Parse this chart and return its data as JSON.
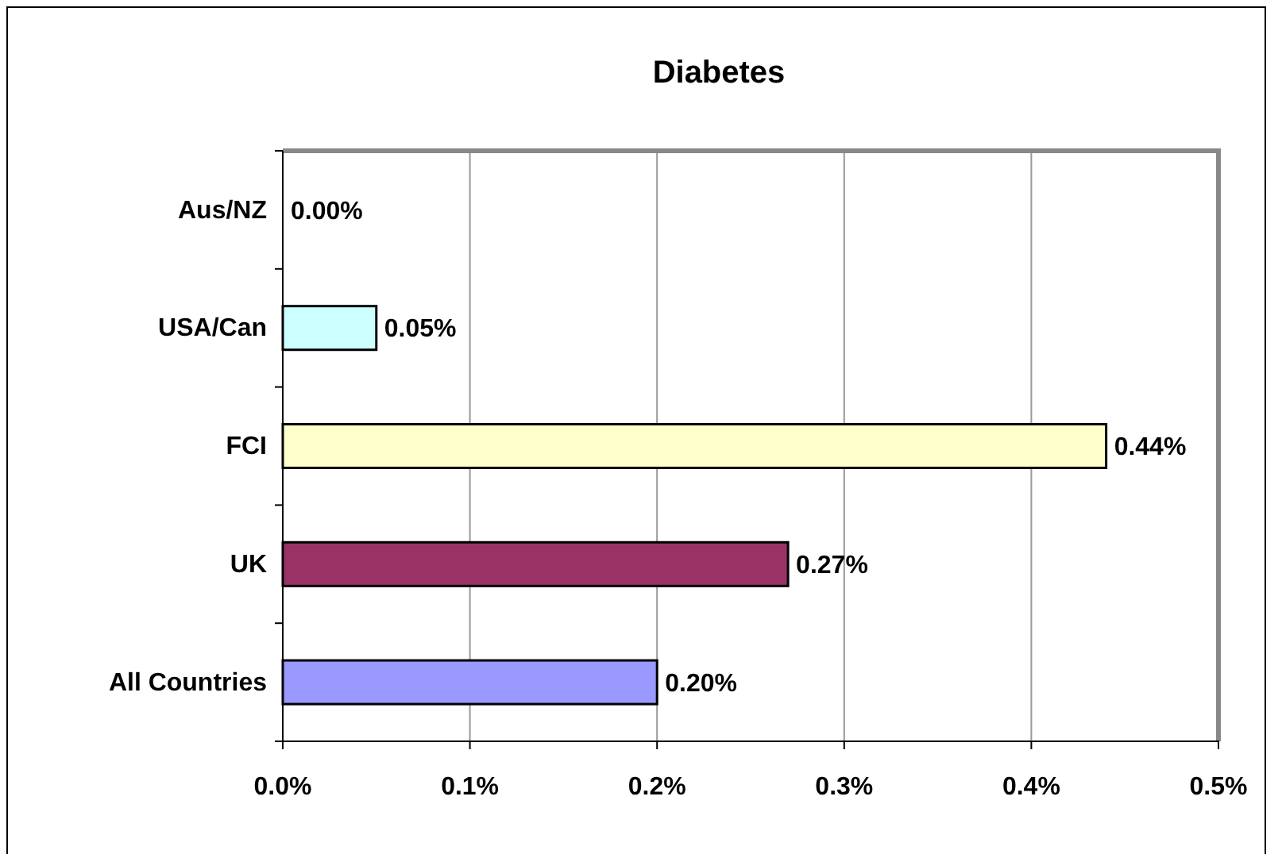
{
  "chart_data": {
    "type": "bar",
    "orientation": "horizontal",
    "title": "Diabetes",
    "categories": [
      "Aus/NZ",
      "USA/Can",
      "FCI",
      "UK",
      "All Countries"
    ],
    "values": [
      0,
      0.05,
      0.44,
      0.27,
      0.2
    ],
    "colors": [
      "#ccffff",
      "#ccffff",
      "#ffffcc",
      "#993366",
      "#9999ff"
    ],
    "value_labels": [
      "0.00%",
      "0.05%",
      "0.44%",
      "0.27%",
      "0.20%"
    ],
    "xlim": [
      0,
      0.5
    ],
    "xticks": [
      {
        "value": 0,
        "label": "0.0%"
      },
      {
        "value": 0.1,
        "label": "0.1%"
      },
      {
        "value": 0.2,
        "label": "0.2%"
      },
      {
        "value": 0.3,
        "label": "0.3%"
      },
      {
        "value": 0.4,
        "label": "0.4%"
      },
      {
        "value": 0.5,
        "label": "0.5%"
      }
    ],
    "grid": "x"
  }
}
